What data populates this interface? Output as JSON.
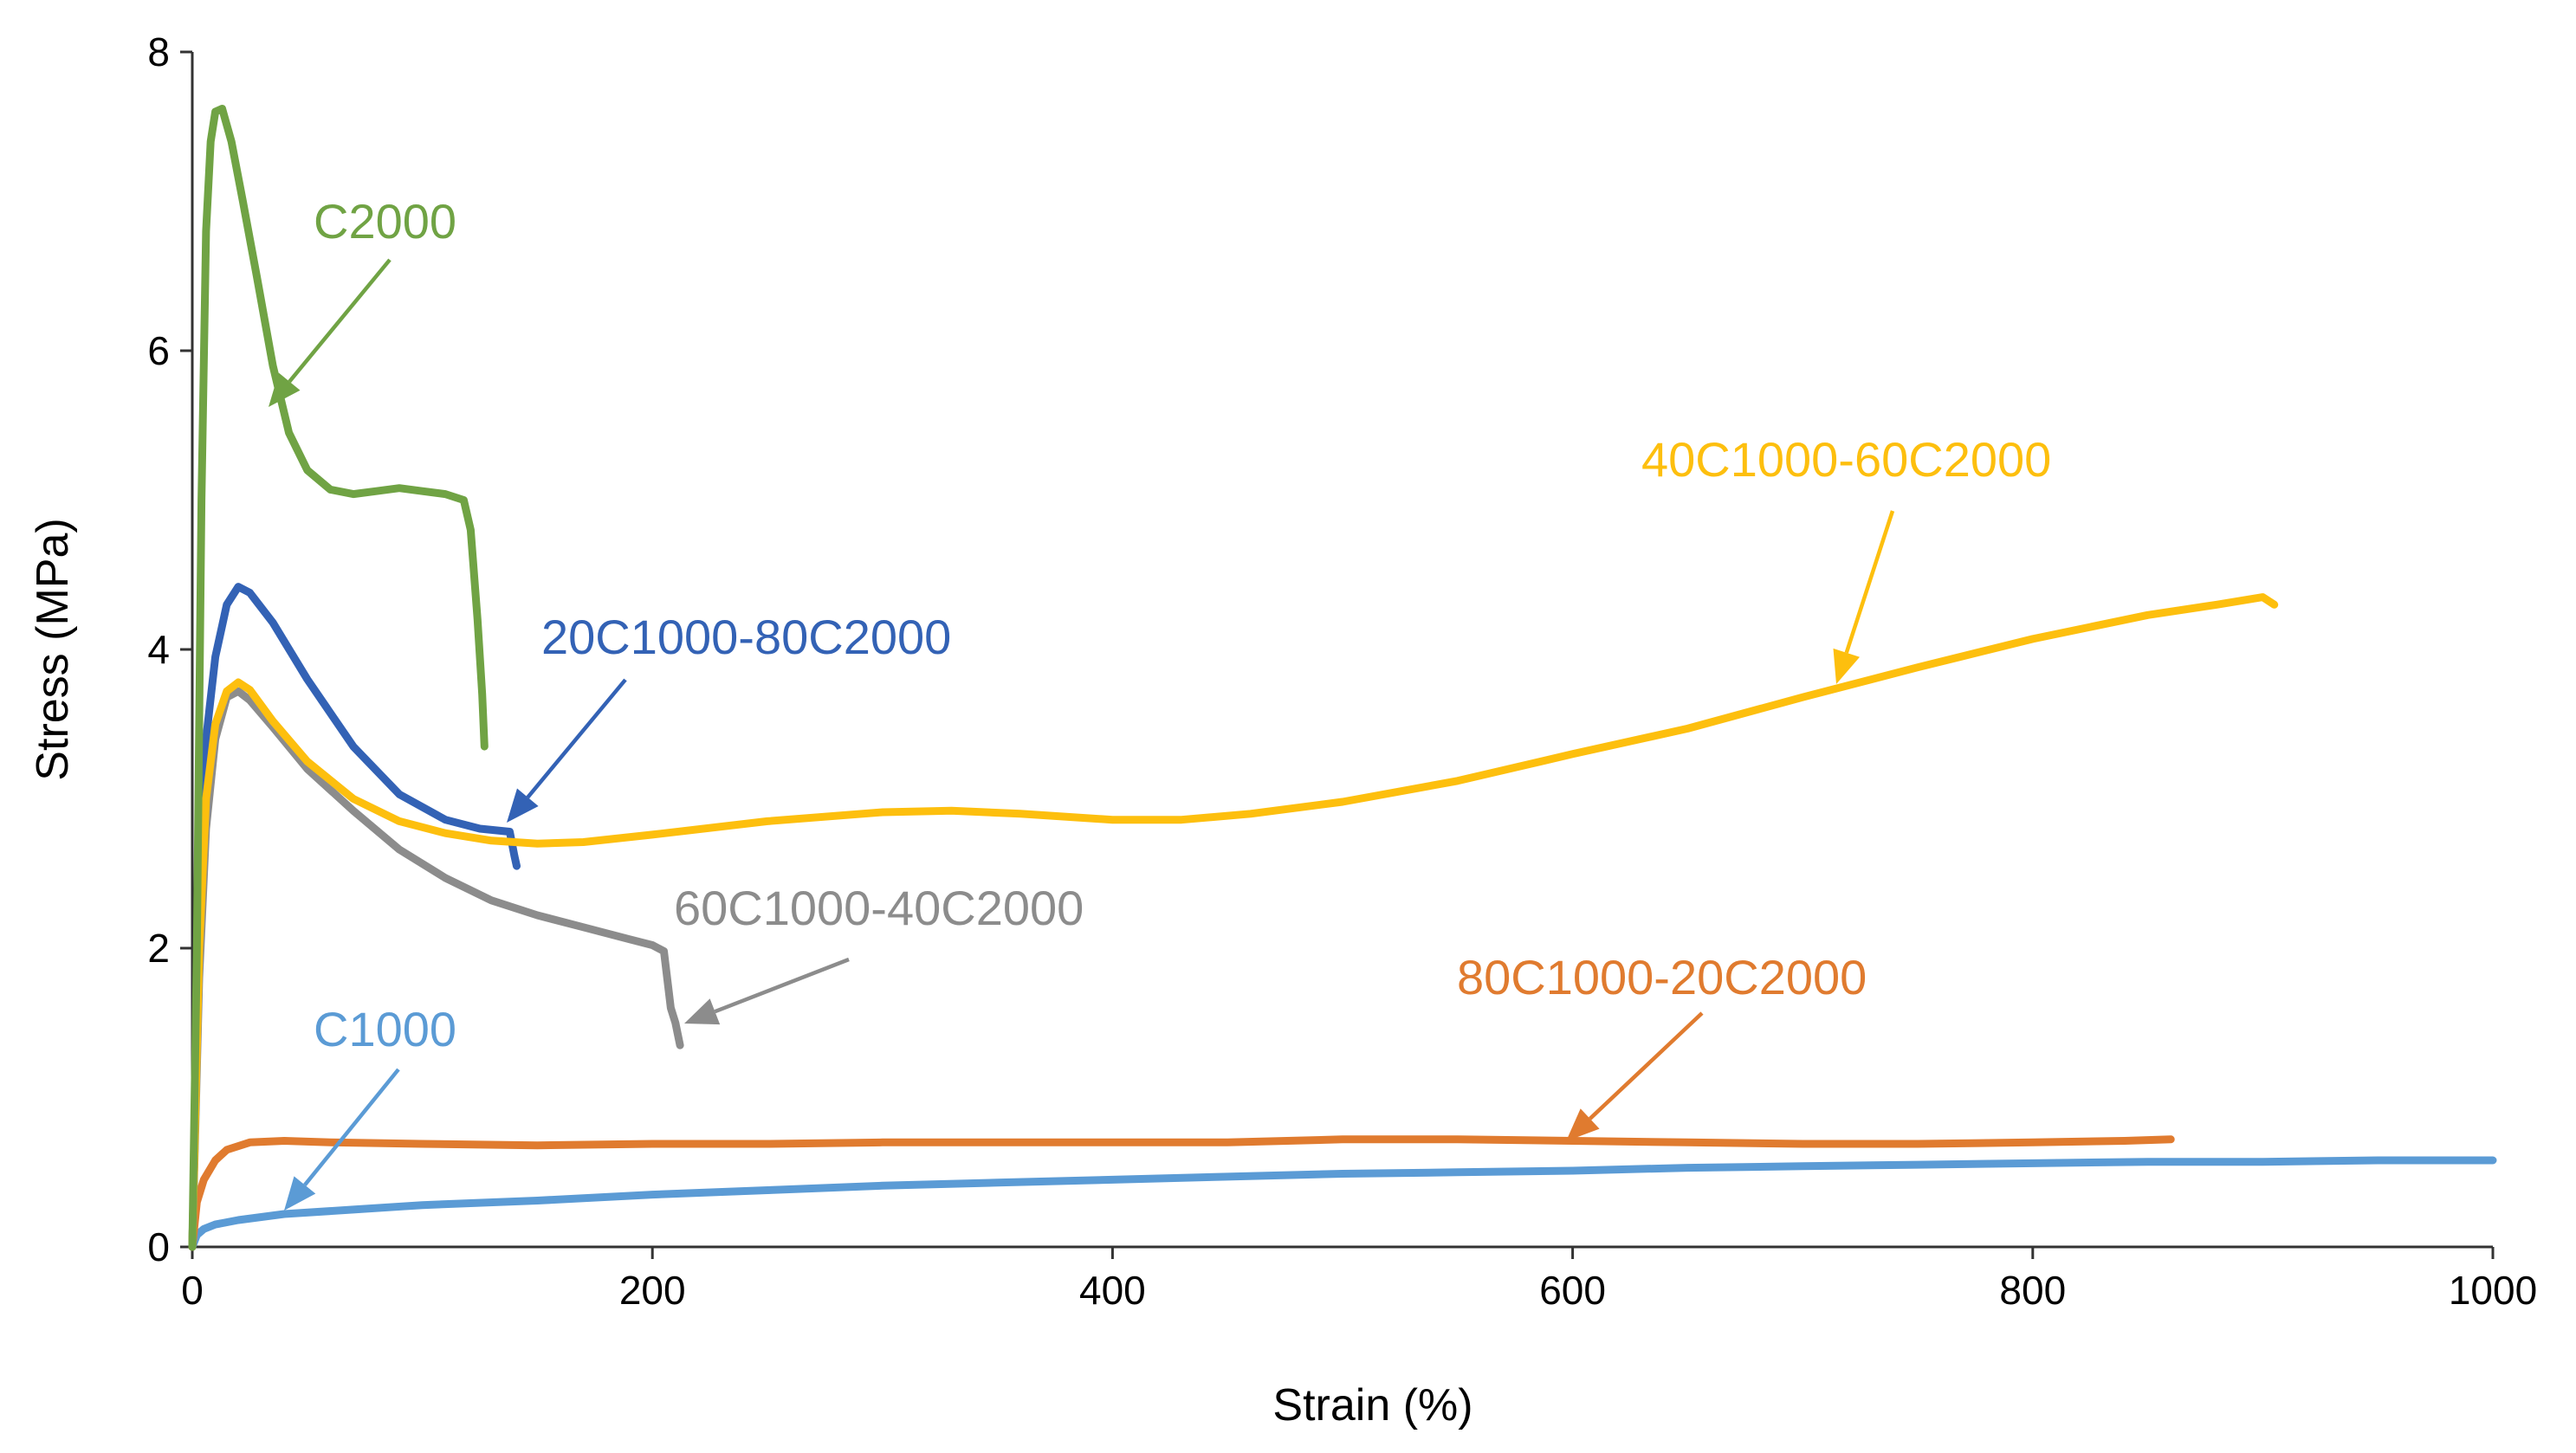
{
  "chart_data": {
    "type": "line",
    "title": "",
    "xlabel": "Strain (%)",
    "ylabel": "Stress (MPa)",
    "xlim": [
      0,
      1000
    ],
    "ylim": [
      0,
      8
    ],
    "xticks": [
      0,
      200,
      400,
      600,
      800,
      1000
    ],
    "yticks": [
      0,
      2,
      4,
      6,
      8
    ],
    "grid": false,
    "legend": "inline annotations with arrows",
    "series": [
      {
        "name": "C1000",
        "color": "#5B9BD5",
        "points": [
          [
            0,
            0
          ],
          [
            2,
            0.08
          ],
          [
            5,
            0.12
          ],
          [
            10,
            0.15
          ],
          [
            20,
            0.18
          ],
          [
            40,
            0.22
          ],
          [
            70,
            0.25
          ],
          [
            100,
            0.28
          ],
          [
            150,
            0.31
          ],
          [
            200,
            0.35
          ],
          [
            250,
            0.38
          ],
          [
            300,
            0.41
          ],
          [
            350,
            0.43
          ],
          [
            400,
            0.45
          ],
          [
            450,
            0.47
          ],
          [
            500,
            0.49
          ],
          [
            550,
            0.5
          ],
          [
            600,
            0.51
          ],
          [
            650,
            0.53
          ],
          [
            700,
            0.54
          ],
          [
            750,
            0.55
          ],
          [
            800,
            0.56
          ],
          [
            850,
            0.57
          ],
          [
            900,
            0.57
          ],
          [
            950,
            0.58
          ],
          [
            1000,
            0.58
          ]
        ]
      },
      {
        "name": "80C1000-20C2000",
        "color": "#E07B2F",
        "points": [
          [
            0,
            0
          ],
          [
            2,
            0.3
          ],
          [
            5,
            0.45
          ],
          [
            10,
            0.58
          ],
          [
            15,
            0.65
          ],
          [
            25,
            0.7
          ],
          [
            40,
            0.71
          ],
          [
            60,
            0.7
          ],
          [
            100,
            0.69
          ],
          [
            150,
            0.68
          ],
          [
            200,
            0.69
          ],
          [
            250,
            0.69
          ],
          [
            300,
            0.7
          ],
          [
            350,
            0.7
          ],
          [
            400,
            0.7
          ],
          [
            450,
            0.7
          ],
          [
            500,
            0.72
          ],
          [
            550,
            0.72
          ],
          [
            600,
            0.71
          ],
          [
            650,
            0.7
          ],
          [
            700,
            0.69
          ],
          [
            750,
            0.69
          ],
          [
            800,
            0.7
          ],
          [
            840,
            0.71
          ],
          [
            860,
            0.72
          ]
        ]
      },
      {
        "name": "60C1000-40C2000",
        "color": "#8C8C8C",
        "points": [
          [
            0,
            0
          ],
          [
            3,
            1.8
          ],
          [
            6,
            2.8
          ],
          [
            10,
            3.4
          ],
          [
            15,
            3.68
          ],
          [
            20,
            3.72
          ],
          [
            25,
            3.66
          ],
          [
            35,
            3.48
          ],
          [
            50,
            3.2
          ],
          [
            70,
            2.92
          ],
          [
            90,
            2.66
          ],
          [
            110,
            2.47
          ],
          [
            130,
            2.32
          ],
          [
            150,
            2.22
          ],
          [
            170,
            2.14
          ],
          [
            190,
            2.06
          ],
          [
            200,
            2.02
          ],
          [
            205,
            1.98
          ],
          [
            208,
            1.6
          ],
          [
            210,
            1.5
          ],
          [
            212,
            1.35
          ]
        ]
      },
      {
        "name": "20C1000-80C2000",
        "color": "#3362B5",
        "points": [
          [
            0,
            0
          ],
          [
            3,
            2.0
          ],
          [
            6,
            3.4
          ],
          [
            10,
            3.95
          ],
          [
            15,
            4.3
          ],
          [
            20,
            4.42
          ],
          [
            25,
            4.38
          ],
          [
            35,
            4.18
          ],
          [
            50,
            3.8
          ],
          [
            70,
            3.35
          ],
          [
            90,
            3.03
          ],
          [
            110,
            2.86
          ],
          [
            125,
            2.8
          ],
          [
            138,
            2.78
          ],
          [
            140,
            2.62
          ],
          [
            141,
            2.55
          ]
        ]
      },
      {
        "name": "40C1000-60C2000",
        "color": "#FDBF0E",
        "points": [
          [
            0,
            0
          ],
          [
            3,
            2.0
          ],
          [
            6,
            3.0
          ],
          [
            10,
            3.5
          ],
          [
            15,
            3.72
          ],
          [
            20,
            3.78
          ],
          [
            25,
            3.73
          ],
          [
            35,
            3.52
          ],
          [
            50,
            3.25
          ],
          [
            70,
            3.0
          ],
          [
            90,
            2.85
          ],
          [
            110,
            2.77
          ],
          [
            130,
            2.72
          ],
          [
            150,
            2.7
          ],
          [
            170,
            2.71
          ],
          [
            200,
            2.76
          ],
          [
            250,
            2.85
          ],
          [
            300,
            2.91
          ],
          [
            330,
            2.92
          ],
          [
            360,
            2.9
          ],
          [
            400,
            2.86
          ],
          [
            430,
            2.86
          ],
          [
            460,
            2.9
          ],
          [
            500,
            2.98
          ],
          [
            550,
            3.12
          ],
          [
            600,
            3.3
          ],
          [
            650,
            3.47
          ],
          [
            700,
            3.68
          ],
          [
            750,
            3.88
          ],
          [
            800,
            4.07
          ],
          [
            850,
            4.23
          ],
          [
            880,
            4.3
          ],
          [
            900,
            4.35
          ],
          [
            905,
            4.3
          ]
        ]
      },
      {
        "name": "C2000",
        "color": "#70A344",
        "points": [
          [
            0,
            0
          ],
          [
            2,
            2.0
          ],
          [
            4,
            5.0
          ],
          [
            6,
            6.8
          ],
          [
            8,
            7.4
          ],
          [
            10,
            7.6
          ],
          [
            13,
            7.62
          ],
          [
            17,
            7.4
          ],
          [
            22,
            7.0
          ],
          [
            28,
            6.5
          ],
          [
            35,
            5.9
          ],
          [
            42,
            5.45
          ],
          [
            50,
            5.2
          ],
          [
            60,
            5.07
          ],
          [
            70,
            5.04
          ],
          [
            80,
            5.06
          ],
          [
            90,
            5.08
          ],
          [
            100,
            5.06
          ],
          [
            110,
            5.04
          ],
          [
            118,
            5.0
          ],
          [
            121,
            4.8
          ],
          [
            124,
            4.2
          ],
          [
            126,
            3.7
          ],
          [
            127,
            3.35
          ]
        ]
      }
    ],
    "annotations": [
      {
        "text": "C2000",
        "series": "C2000"
      },
      {
        "text": "40C1000-60C2000",
        "series": "40C1000-60C2000"
      },
      {
        "text": "20C1000-80C2000",
        "series": "20C1000-80C2000"
      },
      {
        "text": "60C1000-40C2000",
        "series": "60C1000-40C2000"
      },
      {
        "text": "80C1000-20C2000",
        "series": "80C1000-20C2000"
      },
      {
        "text": "C1000",
        "series": "C1000"
      }
    ]
  }
}
